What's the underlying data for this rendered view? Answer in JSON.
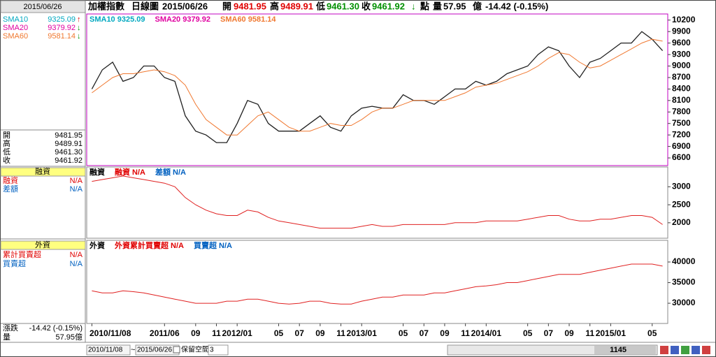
{
  "header": {
    "title": "加權指數",
    "period": "日線圖",
    "date": "2015/06/26",
    "open_label": "開",
    "open": "9481.95",
    "high_label": "高",
    "high": "9489.91",
    "low_label": "低",
    "low": "9461.30",
    "close_label": "收",
    "close": "9461.92",
    "close_arrow": "↓",
    "unit": "點",
    "volume_label": "量",
    "volume": "57.95",
    "volume_unit": "億",
    "change": "-14.42 (-0.15%)"
  },
  "side": {
    "date": "2015/06/26",
    "sma": [
      {
        "name": "SMA10",
        "value": "9325.09",
        "arrow": "↑"
      },
      {
        "name": "SMA20",
        "value": "9379.92",
        "arrow": "↓"
      },
      {
        "name": "SMA60",
        "value": "9581.14",
        "arrow": "↓"
      }
    ],
    "ohlc": [
      {
        "label": "開",
        "value": "9481.95"
      },
      {
        "label": "高",
        "value": "9489.91"
      },
      {
        "label": "低",
        "value": "9461.30"
      },
      {
        "label": "收",
        "value": "9461.92"
      }
    ],
    "margin_title": "融資",
    "margin_items": [
      {
        "label": "融資",
        "value": "N/A"
      },
      {
        "label": "差額",
        "value": "N/A"
      }
    ],
    "foreign_title": "外資",
    "foreign_items": [
      {
        "label": "累計買賣超",
        "value": "N/A"
      },
      {
        "label": "買賣超",
        "value": "N/A"
      }
    ],
    "change_label": "漲跌",
    "change": "-14.42 (-0.15%)",
    "volume_label": "量",
    "volume": "57.95億"
  },
  "footer": {
    "start": "2010/11/08",
    "tilde": "~",
    "end": "2015/06/26",
    "reserve_label": "保留空間",
    "reserve": "3",
    "count": "1145"
  },
  "chart_data": [
    {
      "type": "line",
      "legend": [
        {
          "text": "SMA10 9325.09",
          "color": "#00a8c0"
        },
        {
          "text": "SMA20 9379.92",
          "color": "#e000a0"
        },
        {
          "text": "SMA60 9581.14",
          "color": "#f07830"
        }
      ],
      "series": [
        {
          "color": "#202020",
          "values": [
            8400,
            8900,
            9100,
            8600,
            8700,
            9000,
            9000,
            8700,
            8600,
            7700,
            7300,
            7200,
            7000,
            7000,
            7500,
            8100,
            8000,
            7500,
            7300,
            7300,
            7300,
            7500,
            7700,
            7400,
            7300,
            7700,
            7900,
            7950,
            7900,
            7900,
            8250,
            8100,
            8100,
            8000,
            8200,
            8400,
            8400,
            8600,
            8500,
            8600,
            8800,
            8900,
            9000,
            9300,
            9500,
            9400,
            9000,
            8700,
            9100,
            9200,
            9400,
            9600,
            9600,
            9900,
            9700,
            9400
          ]
        },
        {
          "name": "SMA60",
          "color": "#f07830",
          "values": [
            8300,
            8500,
            8700,
            8800,
            8800,
            8850,
            8900,
            8850,
            8750,
            8500,
            8000,
            7600,
            7400,
            7200,
            7200,
            7450,
            7700,
            7800,
            7600,
            7400,
            7300,
            7300,
            7400,
            7500,
            7450,
            7450,
            7600,
            7800,
            7900,
            7900,
            8000,
            8100,
            8100,
            8100,
            8100,
            8200,
            8300,
            8450,
            8500,
            8550,
            8650,
            8750,
            8850,
            9000,
            9200,
            9350,
            9300,
            9100,
            8950,
            9000,
            9150,
            9300,
            9450,
            9600,
            9700,
            9650
          ]
        }
      ],
      "ylim": [
        6400,
        10360
      ],
      "yticks": [
        6600,
        6900,
        7200,
        7500,
        7800,
        8100,
        8400,
        8700,
        9000,
        9300,
        9600,
        9900,
        10200
      ]
    },
    {
      "type": "line",
      "legend": [
        {
          "text": "融資",
          "color": "#000000"
        },
        {
          "text": "融資 N/A",
          "color": "#e00000"
        },
        {
          "text": "差額 N/A",
          "color": "#0060c0"
        }
      ],
      "series": [
        {
          "color": "#e02020",
          "values": [
            3150,
            3200,
            3250,
            3300,
            3250,
            3200,
            3150,
            3100,
            3000,
            2700,
            2500,
            2350,
            2250,
            2200,
            2200,
            2350,
            2300,
            2150,
            2050,
            2000,
            1950,
            1900,
            1850,
            1850,
            1850,
            1850,
            1900,
            1950,
            1900,
            1900,
            1950,
            1950,
            1950,
            1950,
            1950,
            2000,
            2000,
            2000,
            2050,
            2050,
            2050,
            2050,
            2100,
            2150,
            2200,
            2200,
            2100,
            2050,
            2050,
            2100,
            2100,
            2150,
            2200,
            2200,
            2150,
            1950
          ]
        }
      ],
      "ylim": [
        1570,
        3550
      ],
      "yticks": [
        2000,
        2500,
        3000
      ]
    },
    {
      "type": "line",
      "legend": [
        {
          "text": "外資",
          "color": "#000000"
        },
        {
          "text": "外資累計買賣超 N/A",
          "color": "#e00000"
        },
        {
          "text": "買賣超 N/A",
          "color": "#0060c0"
        }
      ],
      "categories": [
        "2010/11/08",
        null,
        null,
        null,
        null,
        null,
        null,
        "2011/06",
        null,
        null,
        "09",
        null,
        "11",
        null,
        "2012/01",
        null,
        null,
        null,
        "05",
        null,
        "07",
        null,
        "09",
        null,
        "11",
        null,
        "2013/01",
        null,
        null,
        null,
        "05",
        null,
        "07",
        null,
        "09",
        null,
        "11",
        null,
        "2014/01",
        null,
        null,
        null,
        "05",
        null,
        "07",
        null,
        "09",
        null,
        "11",
        null,
        "2015/01",
        null,
        null,
        null,
        "05",
        null
      ],
      "series": [
        {
          "color": "#e02020",
          "values": [
            33000,
            32500,
            32500,
            33000,
            32800,
            32500,
            32000,
            31500,
            31000,
            30500,
            30000,
            30000,
            30000,
            30500,
            30500,
            31000,
            31000,
            30500,
            30000,
            29800,
            30000,
            30500,
            30500,
            30000,
            29800,
            29800,
            30500,
            31000,
            31500,
            31500,
            32000,
            32000,
            32000,
            32500,
            32500,
            33000,
            33500,
            34000,
            34200,
            34500,
            35000,
            35000,
            35500,
            36000,
            36500,
            37000,
            37000,
            37000,
            37500,
            38000,
            38500,
            39000,
            39500,
            39500,
            39500,
            39000
          ]
        }
      ],
      "ylim": [
        25100,
        45250
      ],
      "yticks": [
        30000,
        35000,
        40000
      ]
    }
  ]
}
